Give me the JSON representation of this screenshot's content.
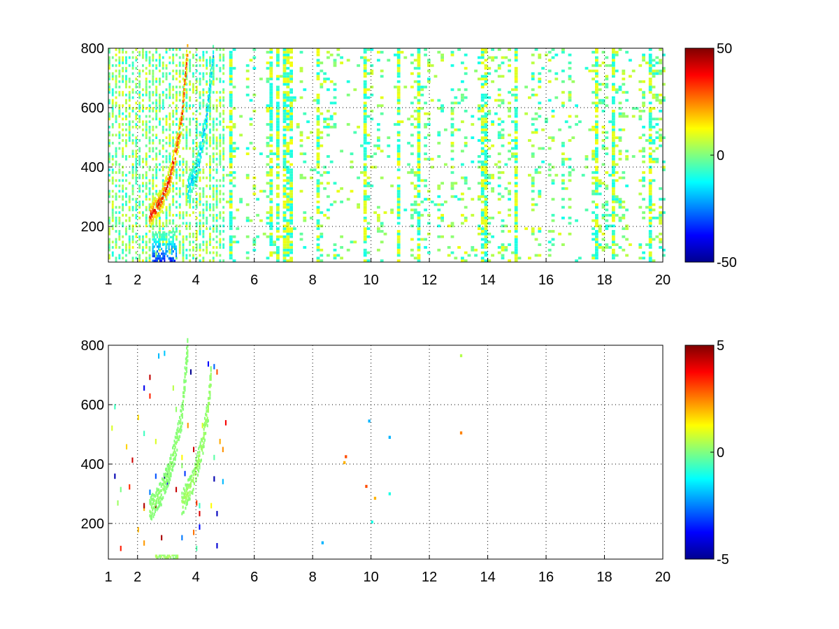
{
  "chart_data": [
    {
      "type": "heatmap",
      "title": "",
      "xlabel": "",
      "ylabel": "",
      "xlim": [
        1,
        20
      ],
      "ylim": [
        80,
        800
      ],
      "x_ticks": [
        1,
        2,
        4,
        6,
        8,
        10,
        12,
        14,
        16,
        18,
        20
      ],
      "y_ticks": [
        200,
        400,
        600,
        800
      ],
      "grid": true,
      "colorbar": {
        "min": -50,
        "max": 50,
        "ticks": [
          50,
          0,
          -50
        ],
        "colormap": "jet"
      },
      "features": [
        {
          "kind": "ridge",
          "value": 40,
          "points": [
            [
              2.4,
              230
            ],
            [
              2.8,
              280
            ],
            [
              3.1,
              360
            ],
            [
              3.3,
              450
            ],
            [
              3.5,
              560
            ],
            [
              3.6,
              680
            ],
            [
              3.7,
              790
            ]
          ]
        },
        {
          "kind": "ridge",
          "value": -22,
          "points": [
            [
              3.7,
              320
            ],
            [
              4.0,
              380
            ],
            [
              4.2,
              480
            ],
            [
              4.35,
              560
            ],
            [
              4.5,
              700
            ],
            [
              4.6,
              790
            ]
          ]
        },
        {
          "kind": "blob",
          "value": -40,
          "points": [
            [
              2.8,
              80
            ],
            [
              3.1,
              110
            ]
          ]
        }
      ],
      "scatter_density": "high below x=5, sparse columns at higher x"
    },
    {
      "type": "heatmap",
      "title": "",
      "xlabel": "",
      "ylabel": "",
      "xlim": [
        1,
        20
      ],
      "ylim": [
        80,
        800
      ],
      "x_ticks": [
        1,
        2,
        4,
        6,
        8,
        10,
        12,
        14,
        16,
        18,
        20
      ],
      "y_ticks": [
        200,
        400,
        600,
        800
      ],
      "grid": true,
      "colorbar": {
        "min": -5,
        "max": 5,
        "ticks": [
          5,
          0,
          -5
        ],
        "colormap": "jet"
      },
      "features": [
        {
          "kind": "ridge",
          "value": 0.2,
          "points": [
            [
              2.4,
              240
            ],
            [
              2.8,
              300
            ],
            [
              3.1,
              380
            ],
            [
              3.3,
              460
            ],
            [
              3.5,
              560
            ],
            [
              3.6,
              680
            ],
            [
              3.7,
              790
            ]
          ]
        },
        {
          "kind": "ridge",
          "value": 0.4,
          "points": [
            [
              3.5,
              260
            ],
            [
              3.9,
              340
            ],
            [
              4.2,
              460
            ],
            [
              4.4,
              580
            ],
            [
              4.5,
              700
            ]
          ]
        },
        {
          "kind": "band",
          "value": 0.3,
          "points": [
            [
              2.6,
              80
            ],
            [
              3.4,
              95
            ]
          ]
        }
      ],
      "scatter_density": "sparse, concentrated below x=5"
    }
  ]
}
